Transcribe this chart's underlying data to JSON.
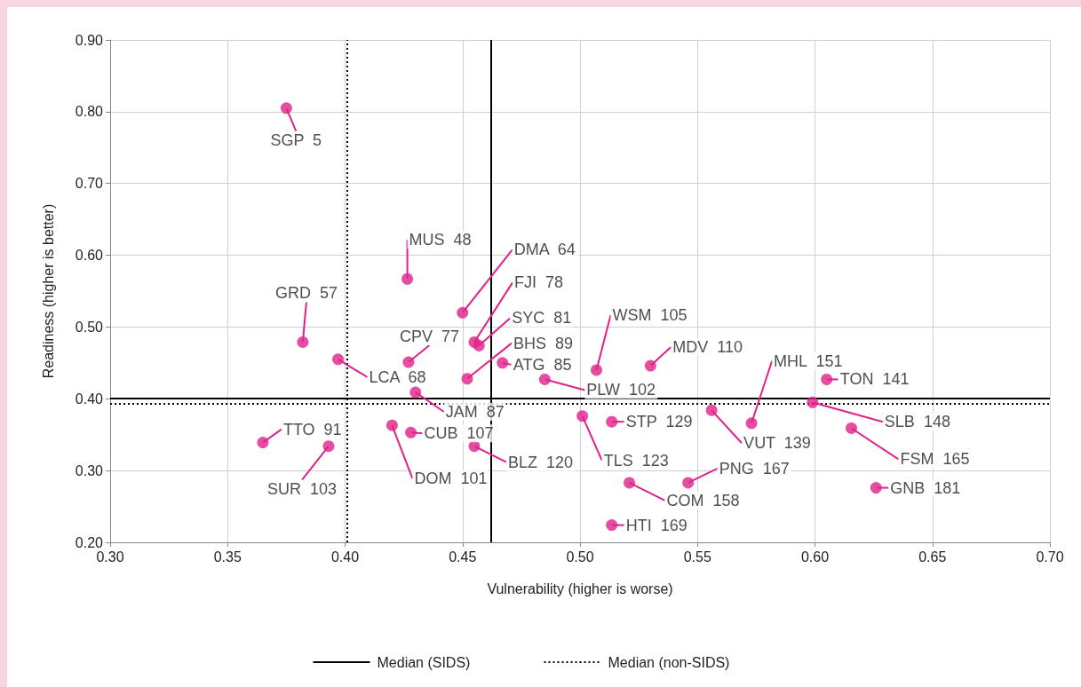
{
  "chart_data": {
    "type": "scatter",
    "xlabel": "Vulnerability (higher is worse)",
    "ylabel": "Readiness (higher is better)",
    "xlim": [
      0.3,
      0.7
    ],
    "xticks": [
      {
        "value": 0.3,
        "label": "0.30"
      },
      {
        "value": 0.35,
        "label": "0.35"
      },
      {
        "value": 0.4,
        "label": "0.40"
      },
      {
        "value": 0.45,
        "label": "0.45"
      },
      {
        "value": 0.5,
        "label": "0.50"
      },
      {
        "value": 0.55,
        "label": "0.55"
      },
      {
        "value": 0.6,
        "label": "0.60"
      },
      {
        "value": 0.65,
        "label": "0.65"
      },
      {
        "value": 0.7,
        "label": "0.70"
      }
    ],
    "ylim": [
      0.2,
      0.9
    ],
    "yticks": [
      {
        "value": 0.2,
        "label": "0.20"
      },
      {
        "value": 0.3,
        "label": "0.30"
      },
      {
        "value": 0.4,
        "label": "0.40"
      },
      {
        "value": 0.5,
        "label": "0.50"
      },
      {
        "value": 0.6,
        "label": "0.60"
      },
      {
        "value": 0.7,
        "label": "0.70"
      },
      {
        "value": 0.8,
        "label": "0.80"
      },
      {
        "value": 0.9,
        "label": "0.90"
      }
    ],
    "grid": true,
    "legend": "bottom",
    "marker": "circle",
    "series": [
      {
        "color": "#e0218a",
        "x": [
          0.375,
          0.382,
          0.4265,
          0.45,
          0.455,
          0.457,
          0.427,
          0.452,
          0.467,
          0.397,
          0.43,
          0.365,
          0.393,
          0.42,
          0.428,
          0.455,
          0.485,
          0.507,
          0.53,
          0.501,
          0.5135,
          0.521,
          0.5135,
          0.546,
          0.556,
          0.573,
          0.605,
          0.599,
          0.6155,
          0.626
        ],
        "values": [
          0.805,
          0.479,
          0.567,
          0.52,
          0.479,
          0.474,
          0.451,
          0.428,
          0.45,
          0.455,
          0.409,
          0.339,
          0.334,
          0.363,
          0.353,
          0.334,
          0.427,
          0.44,
          0.446,
          0.376,
          0.368,
          0.283,
          0.224,
          0.283,
          0.384,
          0.366,
          0.427,
          0.395,
          0.359,
          0.276
        ]
      }
    ],
    "annotations": [
      {
        "text": "SGP  5",
        "x": 0.375,
        "y": 0.805
      },
      {
        "text": "GRD  57",
        "x": 0.382,
        "y": 0.479
      },
      {
        "text": "MUS  48",
        "x": 0.4265,
        "y": 0.567
      },
      {
        "text": "DMA  64",
        "x": 0.45,
        "y": 0.52
      },
      {
        "text": "FJI  78",
        "x": 0.455,
        "y": 0.479
      },
      {
        "text": "SYC  81",
        "x": 0.457,
        "y": 0.474
      },
      {
        "text": "CPV  77",
        "x": 0.427,
        "y": 0.451
      },
      {
        "text": "BHS  89",
        "x": 0.452,
        "y": 0.428
      },
      {
        "text": "ATG  85",
        "x": 0.467,
        "y": 0.45
      },
      {
        "text": "LCA  68",
        "x": 0.397,
        "y": 0.455
      },
      {
        "text": "JAM  87",
        "x": 0.43,
        "y": 0.409
      },
      {
        "text": "TTO  91",
        "x": 0.365,
        "y": 0.339
      },
      {
        "text": "SUR  103",
        "x": 0.393,
        "y": 0.334
      },
      {
        "text": "DOM  101",
        "x": 0.42,
        "y": 0.363
      },
      {
        "text": "CUB  107",
        "x": 0.428,
        "y": 0.353
      },
      {
        "text": "BLZ  120",
        "x": 0.455,
        "y": 0.334
      },
      {
        "text": "PLW  102",
        "x": 0.485,
        "y": 0.427
      },
      {
        "text": "WSM  105",
        "x": 0.507,
        "y": 0.44
      },
      {
        "text": "MDV  110",
        "x": 0.53,
        "y": 0.446
      },
      {
        "text": "TLS  123",
        "x": 0.501,
        "y": 0.376
      },
      {
        "text": "STP  129",
        "x": 0.5135,
        "y": 0.368
      },
      {
        "text": "COM  158",
        "x": 0.521,
        "y": 0.283
      },
      {
        "text": "HTI  169",
        "x": 0.5135,
        "y": 0.224
      },
      {
        "text": "PNG  167",
        "x": 0.546,
        "y": 0.283
      },
      {
        "text": "VUT  139",
        "x": 0.556,
        "y": 0.384
      },
      {
        "text": "MHL  151",
        "x": 0.573,
        "y": 0.366
      },
      {
        "text": "TON  141",
        "x": 0.605,
        "y": 0.427
      },
      {
        "text": "SLB  148",
        "x": 0.599,
        "y": 0.395
      },
      {
        "text": "FSM  165",
        "x": 0.6155,
        "y": 0.359
      },
      {
        "text": "GNB  181",
        "x": 0.626,
        "y": 0.276
      }
    ],
    "ref_lines": [
      {
        "axis": "x",
        "value": 0.462,
        "label": "Median (SIDS)",
        "color": "#000000",
        "line_style": "solid"
      },
      {
        "axis": "y",
        "value": 0.401,
        "color": "#000000",
        "line_style": "solid"
      },
      {
        "axis": "x",
        "value": 0.401,
        "label": "Median (non-SIDS)",
        "color": "#000000",
        "line_style": "dotted"
      },
      {
        "axis": "y",
        "value": 0.393,
        "color": "#000000",
        "line_style": "dotted"
      }
    ]
  }
}
